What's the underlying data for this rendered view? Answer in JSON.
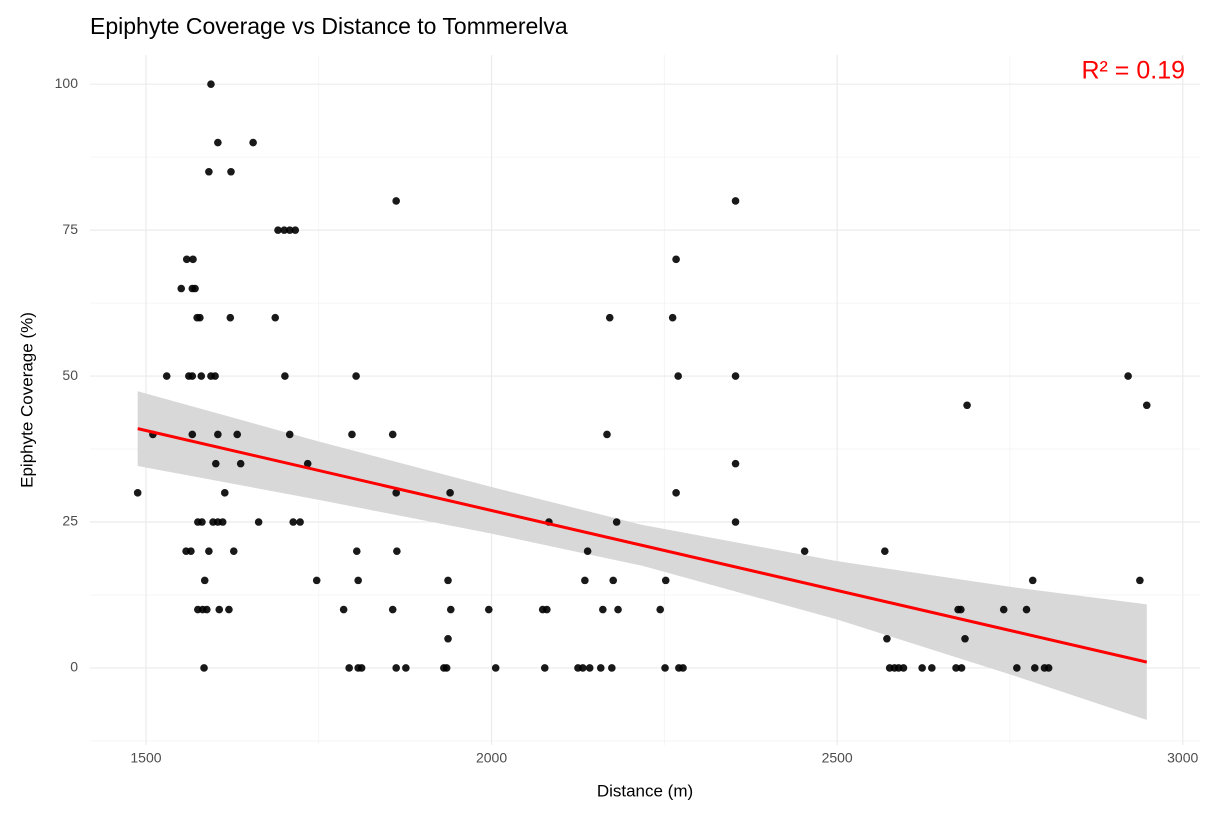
{
  "chart_data": {
    "type": "scatter",
    "title": "Epiphyte Coverage vs Distance to Tommerelva",
    "x_label": "Distance (m)",
    "y_label": "Epiphyte Coverage (%)",
    "annotation": "R² = 0.19",
    "annotation_color": "#ff0000",
    "xlim": [
      1419,
      3025
    ],
    "ylim": [
      -13.2,
      105
    ],
    "xticks": [
      1500,
      2000,
      2500,
      3000
    ],
    "yticks": [
      0,
      25,
      50,
      75,
      100
    ],
    "grid": true,
    "minor_grid": true,
    "points": {
      "color": "#000000",
      "x": [
        1488,
        1510,
        1530,
        1551,
        1559,
        1568,
        1567,
        1571,
        1562,
        1567,
        1567,
        1558,
        1565,
        1574,
        1578,
        1575,
        1581,
        1580,
        1584,
        1585,
        1575,
        1582,
        1588,
        1591,
        1594,
        1591,
        1594,
        1600,
        1597,
        1601,
        1604,
        1604,
        1606,
        1604,
        1611,
        1614,
        1620,
        1622,
        1623,
        1627,
        1632,
        1637,
        1655,
        1663,
        1687,
        1691,
        1700,
        1708,
        1716,
        1701,
        1708,
        1713,
        1723,
        1734,
        1747,
        1786,
        1794,
        1798,
        1804,
        1805,
        1807,
        1807,
        1812,
        1857,
        1857,
        1862,
        1862,
        1862,
        1863,
        1876,
        1931,
        1935,
        1937,
        1937,
        1940,
        1941,
        1996,
        2006,
        2074,
        2077,
        2080,
        2083,
        2125,
        2132,
        2135,
        2139,
        2142,
        2158,
        2161,
        2167,
        2171,
        2174,
        2176,
        2181,
        2183,
        2244,
        2251,
        2252,
        2262,
        2267,
        2267,
        2270,
        2271,
        2277,
        2353,
        2353,
        2353,
        2353,
        2453,
        2569,
        2572,
        2576,
        2583,
        2589,
        2596,
        2623,
        2637,
        2672,
        2675,
        2679,
        2680,
        2685,
        2688,
        2741,
        2760,
        2774,
        2783,
        2786,
        2800,
        2806,
        2921,
        2938,
        2948
      ],
      "y": [
        30,
        40,
        50,
        65,
        70,
        70,
        65,
        65,
        50,
        50,
        40,
        20,
        20,
        60,
        60,
        25,
        25,
        50,
        0,
        15,
        10,
        10,
        10,
        85,
        100,
        20,
        50,
        50,
        25,
        35,
        90,
        40,
        10,
        25,
        25,
        30,
        10,
        60,
        85,
        20,
        40,
        35,
        90,
        25,
        60,
        75,
        75,
        75,
        75,
        50,
        40,
        25,
        25,
        35,
        15,
        10,
        0,
        40,
        50,
        20,
        15,
        0,
        0,
        10,
        40,
        80,
        0,
        30,
        20,
        0,
        0,
        0,
        15,
        5,
        30,
        10,
        10,
        0,
        10,
        0,
        10,
        25,
        0,
        0,
        15,
        20,
        0,
        0,
        10,
        40,
        60,
        0,
        15,
        25,
        10,
        10,
        0,
        15,
        60,
        70,
        30,
        50,
        0,
        0,
        80,
        50,
        35,
        25,
        20,
        20,
        5,
        0,
        0,
        0,
        0,
        0,
        0,
        0,
        10,
        10,
        0,
        5,
        45,
        10,
        0,
        10,
        15,
        0,
        0,
        0,
        50,
        15,
        45
      ]
    },
    "fit": {
      "color": "#ff0000",
      "x": [
        1488,
        2948
      ],
      "y": [
        41,
        1
      ]
    },
    "band": {
      "color": "#d6d6d6",
      "x": [
        1488,
        1750,
        2000,
        2218,
        2500,
        2750,
        2948
      ],
      "upper": [
        47.4,
        38.8,
        31.0,
        24.5,
        18.3,
        13.9,
        10.9
      ],
      "lower": [
        34.6,
        28.8,
        23.0,
        17.5,
        8.3,
        -1.1,
        -8.9
      ]
    }
  }
}
